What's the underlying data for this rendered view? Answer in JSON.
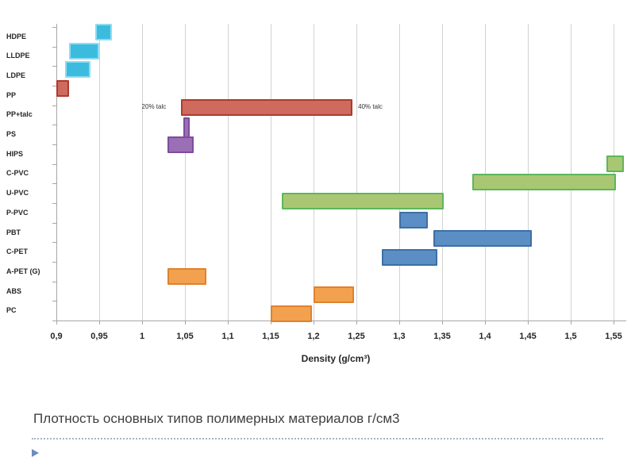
{
  "caption": {
    "text": "Плотность основных типов полимерных материалов г/см3"
  },
  "chart_data": {
    "type": "bar",
    "orientation": "horizontal-range",
    "title": "",
    "xlabel": "Density (g/cm³)",
    "ylabel": "",
    "xlim": [
      0.9,
      1.56
    ],
    "grid": true,
    "legend": "none",
    "x_tick_labels": [
      "0,9",
      "0,95",
      "1",
      "1,05",
      "1,1",
      "1,15",
      "1,2",
      "1,25",
      "1,3",
      "1,35",
      "1,4",
      "1,45",
      "1,5",
      "1,55"
    ],
    "x_tick_values": [
      0.9,
      0.95,
      1.0,
      1.05,
      1.1,
      1.15,
      1.2,
      1.25,
      1.3,
      1.35,
      1.4,
      1.45,
      1.5,
      1.55
    ],
    "categories": [
      "HDPE",
      "LLDPE",
      "LDPE",
      "PP",
      "PP+talc",
      "PS",
      "HIPS",
      "C-PVC",
      "U-PVC",
      "P-PVC",
      "PBT",
      "C-PET",
      "A-PET (G)",
      "ABS",
      "PC"
    ],
    "bars": [
      {
        "material": "HDPE",
        "min": 0.945,
        "max": 0.965,
        "color": "cyan",
        "slot": 0
      },
      {
        "material": "LLDPE",
        "min": 0.915,
        "max": 0.95,
        "color": "cyan",
        "slot": 1
      },
      {
        "material": "LDPE",
        "min": 0.91,
        "max": 0.94,
        "color": "cyan",
        "slot": 2
      },
      {
        "material": "PP",
        "min": 0.9,
        "max": 0.915,
        "color": "red",
        "slot": 3
      },
      {
        "material": "PP+talc",
        "min": 1.045,
        "max": 1.245,
        "color": "red",
        "slot": 4
      },
      {
        "material": "PS",
        "min": 1.048,
        "max": 1.056,
        "color": "purple",
        "slot": 5,
        "tall": true
      },
      {
        "material": "HIPS",
        "min": 1.03,
        "max": 1.06,
        "color": "purple",
        "slot": 6
      },
      {
        "material": "C-PVC",
        "min": 1.542,
        "max": 1.562,
        "color": "green",
        "slot": 7
      },
      {
        "material": "U-PVC",
        "min": 1.385,
        "max": 1.553,
        "color": "green",
        "slot": 8
      },
      {
        "material": "P-PVC",
        "min": 1.163,
        "max": 1.352,
        "color": "green",
        "slot": 9
      },
      {
        "material": "PBT",
        "min": 1.3,
        "max": 1.333,
        "color": "blue",
        "slot": 10
      },
      {
        "material": "C-PET",
        "min": 1.34,
        "max": 1.455,
        "color": "blue",
        "slot": 11
      },
      {
        "material": "A-PET (G)",
        "min": 1.28,
        "max": 1.344,
        "color": "blue",
        "slot": 12
      },
      {
        "material": "ABS",
        "min": 1.03,
        "max": 1.075,
        "color": "orange",
        "slot": 13
      },
      {
        "material": "PC",
        "min": 1.2,
        "max": 1.247,
        "color": "orange",
        "slot": 14
      },
      {
        "material": "",
        "min": 1.15,
        "max": 1.198,
        "color": "orange",
        "slot": 15
      }
    ],
    "annotations": [
      {
        "text": "20% talc",
        "anchor_value": 1.028,
        "align": "right",
        "slot": 4
      },
      {
        "text": "40% talc",
        "anchor_value": 1.252,
        "align": "left",
        "slot": 4
      }
    ],
    "colors": {
      "cyan": {
        "fill": "#3bbcdf",
        "stroke": "#8fdcf0"
      },
      "red": {
        "fill": "#ce6a5e",
        "stroke": "#b03a2e"
      },
      "purple": {
        "fill": "#9b6fb5",
        "stroke": "#7d4c9e"
      },
      "green": {
        "fill": "#a9c772",
        "stroke": "#5cb75c"
      },
      "blue": {
        "fill": "#5b8ec4",
        "stroke": "#3c6fa5"
      },
      "orange": {
        "fill": "#f2a24e",
        "stroke": "#e0812c"
      }
    }
  }
}
